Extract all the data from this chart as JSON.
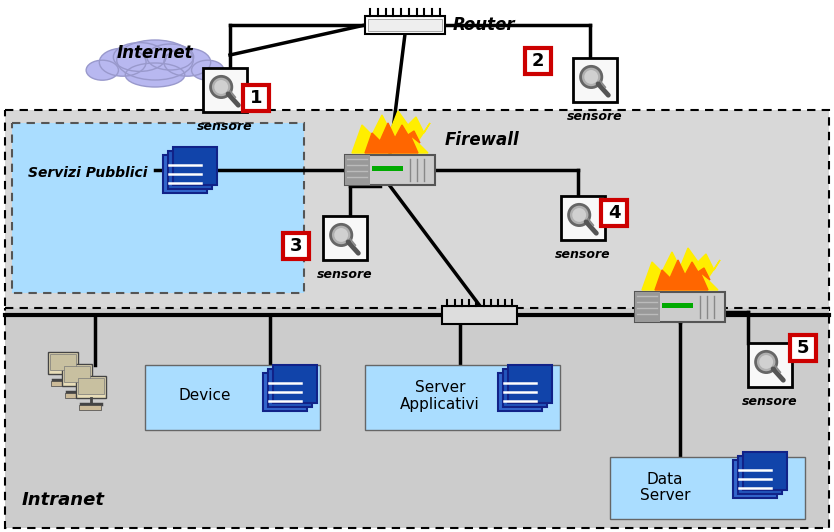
{
  "figsize": [
    8.34,
    5.32
  ],
  "dpi": 100,
  "bg_white": "#ffffff",
  "dmz_color": "#d8d8d8",
  "intranet_color": "#cccccc",
  "cloud_color": "#b8b8f0",
  "cloud_edge": "#9999cc",
  "light_blue": "#aaddff",
  "sensor_bg": "#f8f8f8",
  "server_blue": "#2244bb",
  "router_label": "Router",
  "firewall_label": "Firewall",
  "internet_label": "Internet",
  "intranet_label": "Intranet",
  "servizi_label": "Servizi Pubblici",
  "device_label": "Device",
  "server_app_label1": "Server",
  "server_app_label2": "Applicativi",
  "data_server_label1": "Data",
  "data_server_label2": "Server",
  "sensore_label": "sensore"
}
